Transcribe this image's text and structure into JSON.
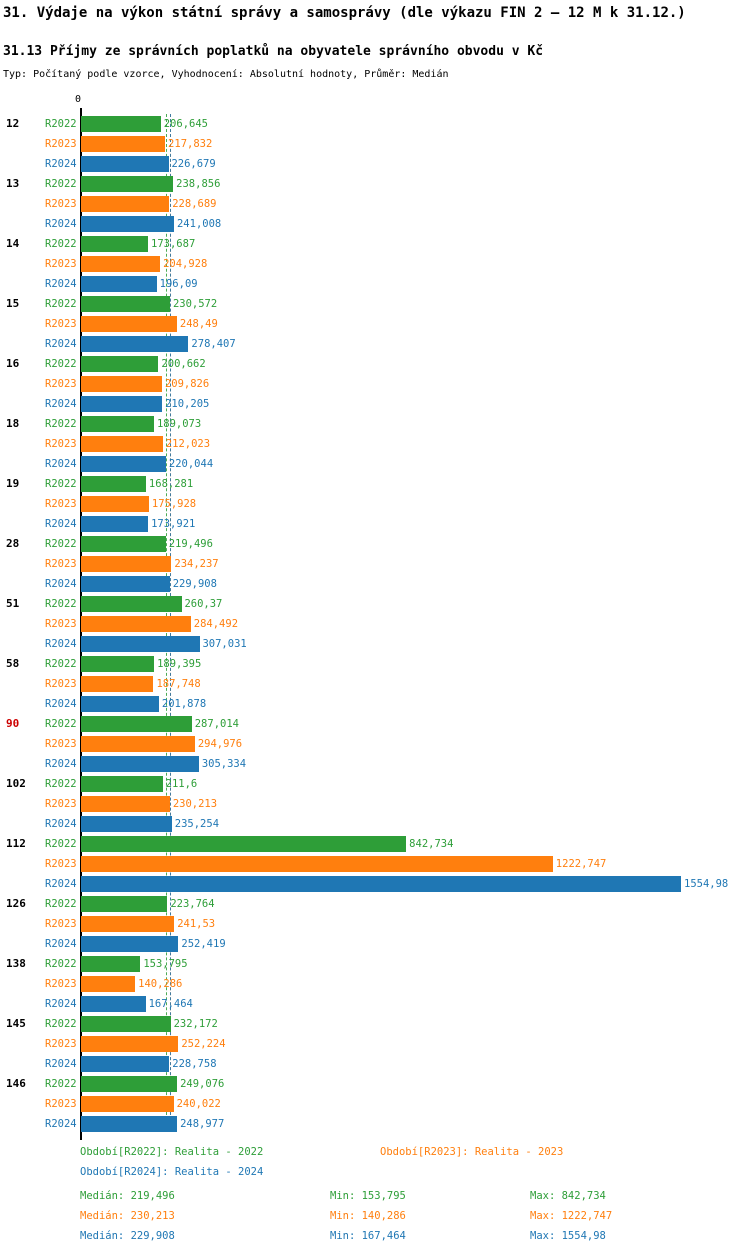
{
  "title": "31. Výdaje na výkon státní správy a samosprávy (dle výkazu FIN 2 – 12 M k 31.12.)",
  "subtitle": "31.13 Příjmy ze správních poplatků na obyvatele správního obvodu v Kč",
  "meta": "Typ: Počítaný podle vzorce, Vyhodnocení: Absolutní hodnoty, Průměr: Medián",
  "colors": {
    "r2022": "#2e9e38",
    "r2023": "#ff7f0e",
    "r2024": "#1f77b4",
    "highlight_category": "#cc0000",
    "axis": "#000000"
  },
  "chart_data": {
    "type": "bar",
    "orientation": "horizontal",
    "title": "31.13 Příjmy ze správních poplatků na obyvatele správního obvodu v Kč",
    "x_origin_label": "0",
    "xmax": 1554.98,
    "grid": false,
    "categories": [
      "12",
      "13",
      "14",
      "15",
      "16",
      "18",
      "19",
      "28",
      "51",
      "58",
      "90",
      "102",
      "112",
      "126",
      "138",
      "145",
      "146"
    ],
    "highlighted_category": "90",
    "series": [
      {
        "name": "R2022",
        "color": "#2e9e38",
        "values": [
          206.645,
          238.856,
          173.687,
          230.572,
          200.662,
          189.073,
          168.281,
          219.496,
          260.37,
          189.395,
          287.014,
          211.6,
          842.734,
          223.764,
          153.795,
          232.172,
          249.076
        ],
        "labels": [
          "206,645",
          "238,856",
          "173,687",
          "230,572",
          "200,662",
          "189,073",
          "168,281",
          "219,496",
          "260,37",
          "189,395",
          "287,014",
          "211,6",
          "842,734",
          "223,764",
          "153,795",
          "232,172",
          "249,076"
        ],
        "median": 219.496
      },
      {
        "name": "R2023",
        "color": "#ff7f0e",
        "values": [
          217.832,
          228.689,
          204.928,
          248.49,
          209.826,
          212.023,
          175.928,
          234.237,
          284.492,
          187.748,
          294.976,
          230.213,
          1222.747,
          241.53,
          140.286,
          252.224,
          240.022
        ],
        "labels": [
          "217,832",
          "228,689",
          "204,928",
          "248,49",
          "209,826",
          "212,023",
          "175,928",
          "234,237",
          "284,492",
          "187,748",
          "294,976",
          "230,213",
          "1222,747",
          "241,53",
          "140,286",
          "252,224",
          "240,022"
        ],
        "median": 230.213
      },
      {
        "name": "R2024",
        "color": "#1f77b4",
        "values": [
          226.679,
          241.008,
          196.09,
          278.407,
          210.205,
          220.044,
          173.921,
          229.908,
          307.031,
          201.878,
          305.334,
          235.254,
          1554.98,
          252.419,
          167.464,
          228.758,
          248.977
        ],
        "labels": [
          "226,679",
          "241,008",
          "196,09",
          "278,407",
          "210,205",
          "220,044",
          "173,921",
          "229,908",
          "307,031",
          "201,878",
          "305,334",
          "235,254",
          "1554,98",
          "252,419",
          "167,464",
          "228,758",
          "248,977"
        ],
        "median": 229.908
      }
    ]
  },
  "legend": [
    {
      "label": "Období[R2022]: Realita - 2022",
      "color": "#2e9e38"
    },
    {
      "label": "Období[R2023]: Realita - 2023",
      "color": "#ff7f0e"
    },
    {
      "label": "Období[R2024]: Realita - 2024",
      "color": "#1f77b4"
    }
  ],
  "stats": [
    {
      "color": "#2e9e38",
      "median": "Medián: 219,496",
      "min": "Min: 153,795",
      "max": "Max: 842,734"
    },
    {
      "color": "#ff7f0e",
      "median": "Medián: 230,213",
      "min": "Min: 140,286",
      "max": "Max: 1222,747"
    },
    {
      "color": "#1f77b4",
      "median": "Medián: 229,908",
      "min": "Min: 167,464",
      "max": "Max: 1554,98"
    }
  ]
}
